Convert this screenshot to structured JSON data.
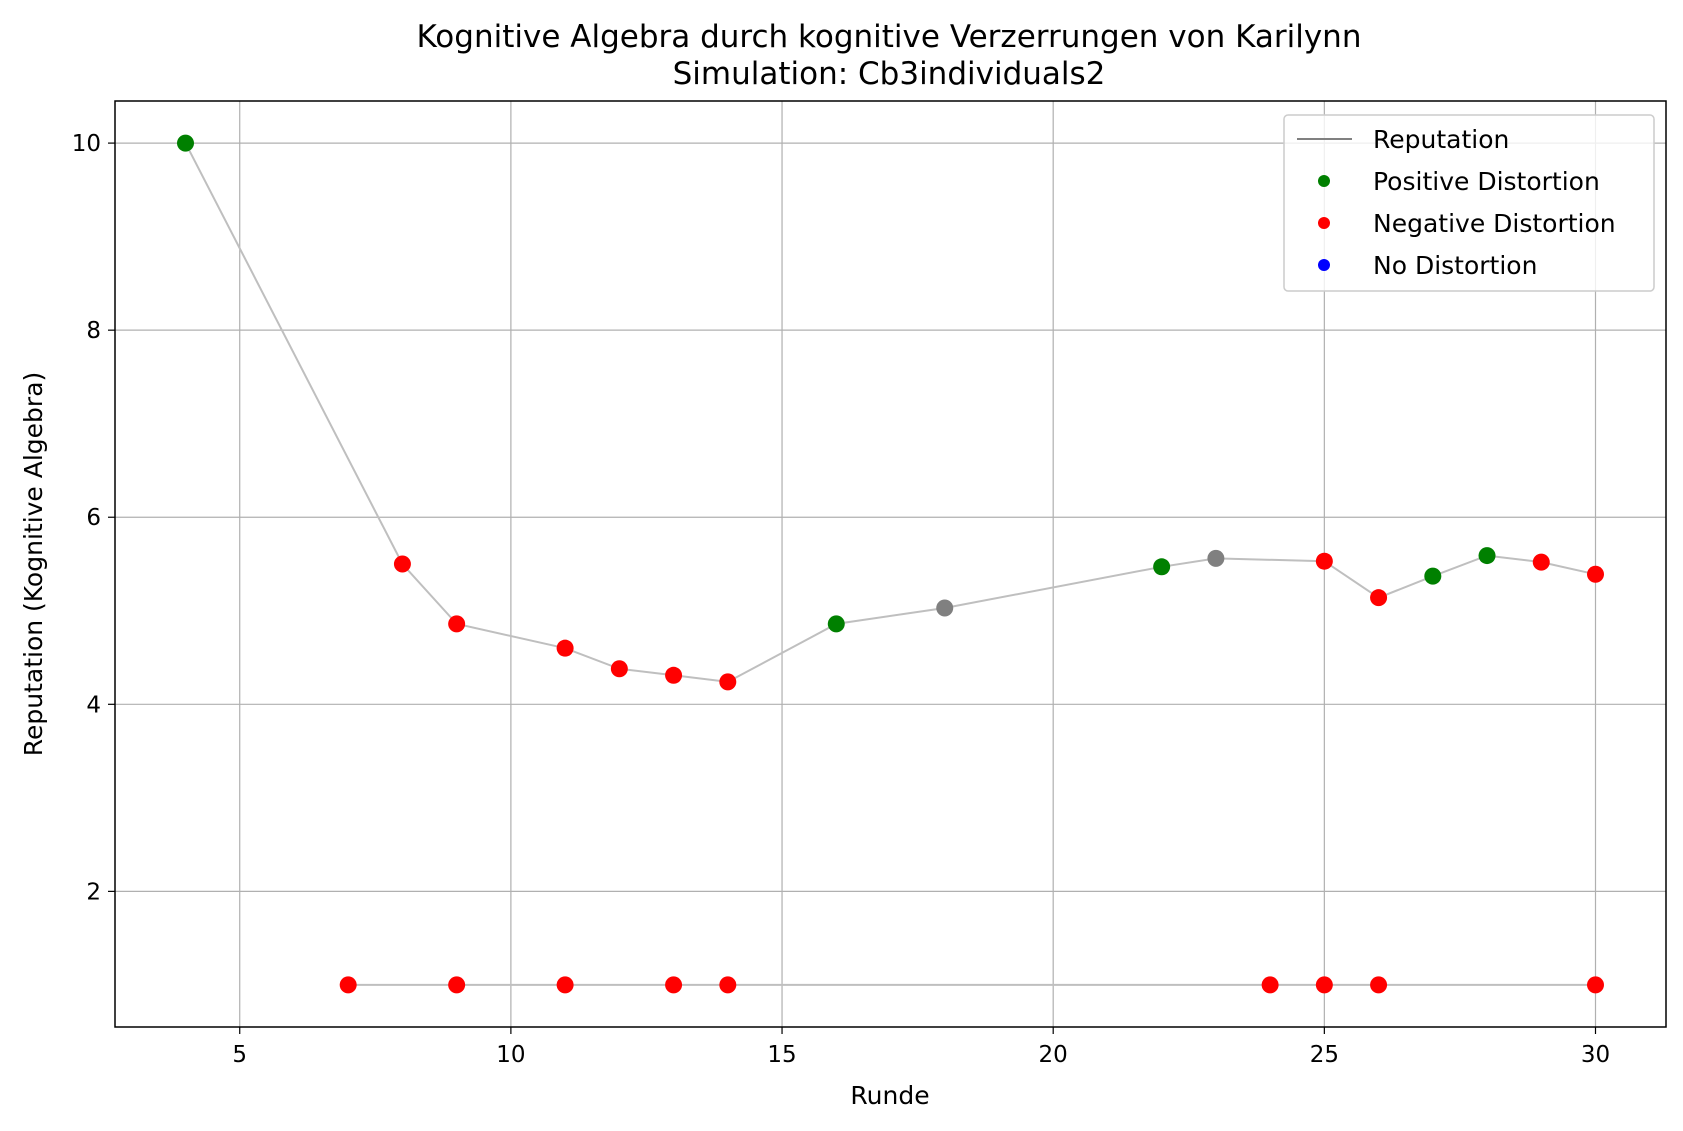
{
  "chart_data": {
    "type": "line",
    "title": "Kognitive Algebra durch kognitive Verzerrungen von Karilynn",
    "subtitle": "Simulation: Cb3individuals2",
    "xlabel": "Runde",
    "ylabel": "Reputation (Kognitive Algebra)",
    "xlim": [
      2.7,
      31.3
    ],
    "ylim": [
      0.55,
      10.45
    ],
    "xticks": [
      5,
      10,
      15,
      20,
      25,
      30
    ],
    "yticks": [
      2,
      4,
      6,
      8,
      10
    ],
    "grid": true,
    "legend_position": "top-right",
    "legend": [
      {
        "label": "Reputation",
        "kind": "line",
        "color": "#808080"
      },
      {
        "label": "Positive Distortion",
        "kind": "dot",
        "color": "#008000"
      },
      {
        "label": "Negative Distortion",
        "kind": "dot",
        "color": "#ff0000"
      },
      {
        "label": "No Distortion",
        "kind": "dot",
        "color": "#0000ff"
      }
    ],
    "series": [
      {
        "line_color": "#bfbfbf",
        "points": [
          {
            "x": 4,
            "y": 10.0,
            "color": "#008000"
          },
          {
            "x": 8,
            "y": 5.5,
            "color": "#ff0000"
          },
          {
            "x": 9,
            "y": 4.86,
            "color": "#ff0000"
          },
          {
            "x": 11,
            "y": 4.6,
            "color": "#ff0000"
          },
          {
            "x": 12,
            "y": 4.38,
            "color": "#ff0000"
          },
          {
            "x": 13,
            "y": 4.31,
            "color": "#ff0000"
          },
          {
            "x": 14,
            "y": 4.24,
            "color": "#ff0000"
          },
          {
            "x": 16,
            "y": 4.86,
            "color": "#008000"
          },
          {
            "x": 18,
            "y": 5.03,
            "color": "#808080"
          },
          {
            "x": 22,
            "y": 5.47,
            "color": "#008000"
          },
          {
            "x": 23,
            "y": 5.56,
            "color": "#808080"
          },
          {
            "x": 25,
            "y": 5.53,
            "color": "#ff0000"
          },
          {
            "x": 26,
            "y": 5.14,
            "color": "#ff0000"
          },
          {
            "x": 27,
            "y": 5.37,
            "color": "#008000"
          },
          {
            "x": 28,
            "y": 5.59,
            "color": "#008000"
          },
          {
            "x": 29,
            "y": 5.52,
            "color": "#ff0000"
          },
          {
            "x": 30,
            "y": 5.39,
            "color": "#ff0000"
          }
        ]
      },
      {
        "line_color": "#bfbfbf",
        "points": [
          {
            "x": 7,
            "y": 1.0,
            "color": "#ff0000"
          },
          {
            "x": 9,
            "y": 1.0,
            "color": "#ff0000"
          },
          {
            "x": 11,
            "y": 1.0,
            "color": "#ff0000"
          },
          {
            "x": 13,
            "y": 1.0,
            "color": "#ff0000"
          },
          {
            "x": 14,
            "y": 1.0,
            "color": "#ff0000"
          },
          {
            "x": 24,
            "y": 1.0,
            "color": "#ff0000"
          },
          {
            "x": 25,
            "y": 1.0,
            "color": "#ff0000"
          },
          {
            "x": 26,
            "y": 1.0,
            "color": "#ff0000"
          },
          {
            "x": 30,
            "y": 1.0,
            "color": "#ff0000"
          }
        ]
      }
    ]
  }
}
